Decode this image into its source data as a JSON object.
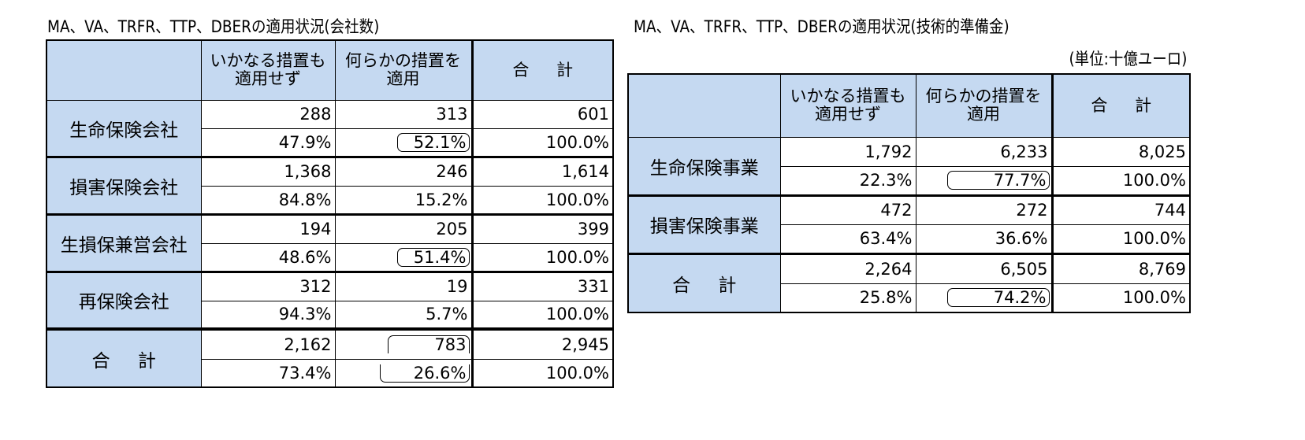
{
  "left": {
    "title": "MA、VA、TRFR、TTP、DBERの適用状況(会社数)",
    "headers": {
      "none_line1": "いかなる措置も",
      "none_line2": "適用せず",
      "some_line1": "何らかの措置を",
      "some_line2": "適用",
      "total": "合 計"
    },
    "rows": [
      {
        "label": "生命保険会社",
        "count": [
          "288",
          "313",
          "601"
        ],
        "pct": [
          "47.9%",
          "52.1%",
          "100.0%"
        ]
      },
      {
        "label": "損害保険会社",
        "count": [
          "1,368",
          "246",
          "1,614"
        ],
        "pct": [
          "84.8%",
          "15.2%",
          "100.0%"
        ]
      },
      {
        "label": "生損保兼営会社",
        "count": [
          "194",
          "205",
          "399"
        ],
        "pct": [
          "48.6%",
          "51.4%",
          "100.0%"
        ]
      },
      {
        "label": "再保険会社",
        "count": [
          "312",
          "19",
          "331"
        ],
        "pct": [
          "94.3%",
          "5.7%",
          "100.0%"
        ]
      },
      {
        "label": "合 計",
        "count": [
          "2,162",
          "783",
          "2,945"
        ],
        "pct": [
          "73.4%",
          "26.6%",
          "100.0%"
        ]
      }
    ]
  },
  "right": {
    "title": "MA、VA、TRFR、TTP、DBERの適用状況(技術的準備金)",
    "unit": "(単位:十億ユーロ)",
    "headers": {
      "none_line1": "いかなる措置も",
      "none_line2": "適用せず",
      "some_line1": "何らかの措置を",
      "some_line2": "適用",
      "total": "合 計"
    },
    "rows": [
      {
        "label": "生命保険事業",
        "count": [
          "1,792",
          "6,233",
          "8,025"
        ],
        "pct": [
          "22.3%",
          "77.7%",
          "100.0%"
        ]
      },
      {
        "label": "損害保険事業",
        "count": [
          "472",
          "272",
          "744"
        ],
        "pct": [
          "63.4%",
          "36.6%",
          "100.0%"
        ]
      },
      {
        "label": "合 計",
        "count": [
          "2,264",
          "6,505",
          "8,769"
        ],
        "pct": [
          "25.8%",
          "74.2%",
          "100.0%"
        ]
      }
    ]
  }
}
